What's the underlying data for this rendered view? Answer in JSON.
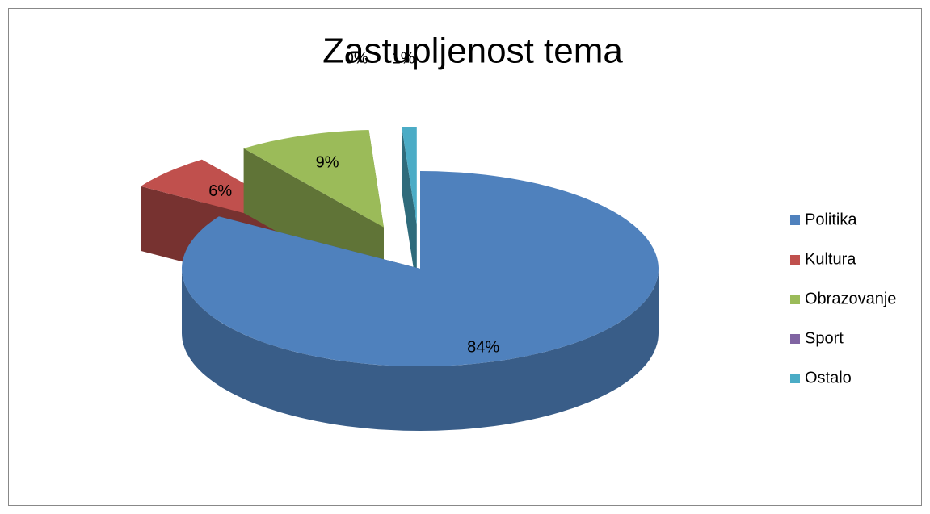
{
  "chart_data": {
    "type": "pie",
    "title": "Zastupljenost tema",
    "categories": [
      "Politika",
      "Kultura",
      "Obrazovanje",
      "Sport",
      "Ostalo"
    ],
    "values": [
      84,
      6,
      9,
      0,
      1
    ],
    "value_labels": [
      "84%",
      "6%",
      "9%",
      "0%",
      "1%"
    ],
    "colors": [
      "#4f81bd",
      "#c0504d",
      "#9bbb59",
      "#8064a2",
      "#4bacc6"
    ],
    "legend": "right"
  }
}
